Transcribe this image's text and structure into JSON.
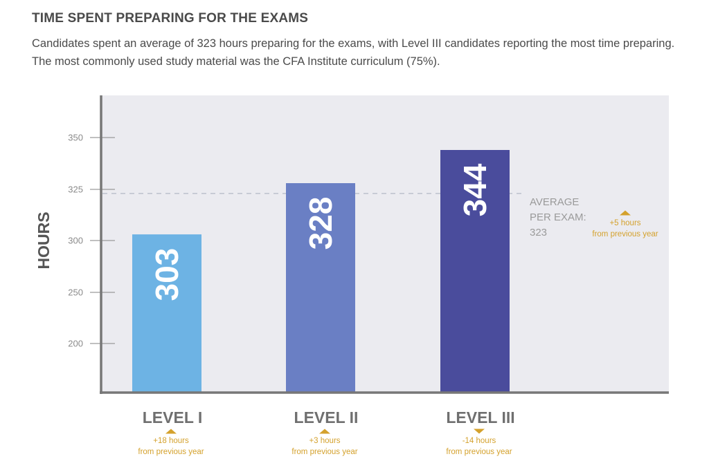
{
  "header": {
    "title": "TIME SPENT PREPARING FOR THE EXAMS",
    "subtitle": "Candidates spent an average of 323 hours preparing for the exams, with Level III candidates reporting the most time preparing. The most commonly used study material was the CFA Institute curriculum (75%)."
  },
  "chart_data": {
    "type": "bar",
    "title": "TIME SPENT PREPARING FOR THE EXAMS",
    "xlabel": "",
    "ylabel": "HOURS",
    "ylim": [
      175,
      375
    ],
    "yticks": [
      200,
      250,
      300,
      325,
      350
    ],
    "grid": false,
    "categories": [
      "LEVEL I",
      "LEVEL II",
      "LEVEL III"
    ],
    "values": [
      303,
      328,
      344
    ],
    "value_labels": [
      "303",
      "328",
      "344"
    ],
    "colors": [
      "#6db3e4",
      "#6a7fc4",
      "#4a4c9c"
    ],
    "deltas": [
      {
        "direction": "up",
        "line1": "+18 hours",
        "line2": "from previous year"
      },
      {
        "direction": "up",
        "line1": "+3 hours",
        "line2": "from previous year"
      },
      {
        "direction": "down",
        "line1": "-14 hours",
        "line2": "from previous year"
      }
    ],
    "average": {
      "value": 323,
      "label_lines": [
        "AVERAGE",
        "PER EXAM:",
        "323"
      ],
      "delta": {
        "direction": "up",
        "line1": "+5 hours",
        "line2": "from previous year"
      }
    },
    "style": {
      "background": "#ebebf0",
      "axis_color": "#777777",
      "average_line_color": "#b8bcc8",
      "delta_color": "#d4a12c"
    }
  }
}
